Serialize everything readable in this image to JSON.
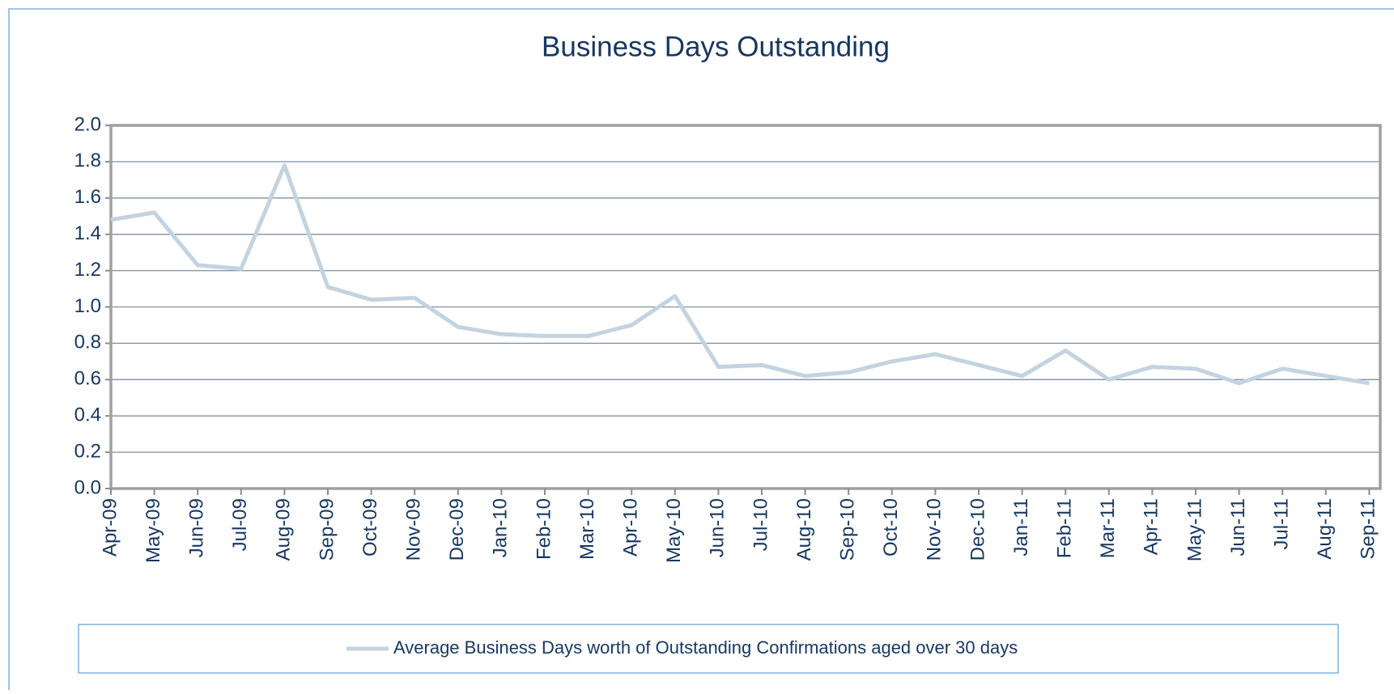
{
  "chart_data": {
    "type": "line",
    "title": "Business Days Outstanding",
    "categories": [
      "Apr-09",
      "May-09",
      "Jun-09",
      "Jul-09",
      "Aug-09",
      "Sep-09",
      "Oct-09",
      "Nov-09",
      "Dec-09",
      "Jan-10",
      "Feb-10",
      "Mar-10",
      "Apr-10",
      "May-10",
      "Jun-10",
      "Jul-10",
      "Aug-10",
      "Sep-10",
      "Oct-10",
      "Nov-10",
      "Dec-10",
      "Jan-11",
      "Feb-11",
      "Mar-11",
      "Apr-11",
      "May-11",
      "Jun-11",
      "Jul-11",
      "Aug-11",
      "Sep-11"
    ],
    "series": [
      {
        "name": "Average Business Days worth of Outstanding Confirmations aged over 30 days",
        "color": "#c3d3e0",
        "values": [
          1.48,
          1.52,
          1.23,
          1.21,
          1.78,
          1.11,
          1.04,
          1.05,
          0.89,
          0.85,
          0.84,
          0.84,
          0.9,
          1.06,
          0.67,
          0.68,
          0.62,
          0.64,
          0.7,
          0.74,
          0.68,
          0.62,
          0.76,
          0.6,
          0.67,
          0.66,
          0.58,
          0.66,
          0.62,
          0.58
        ]
      }
    ],
    "ylim": [
      0,
      2
    ],
    "yticks": [
      {
        "value": 0,
        "label": "0.0"
      },
      {
        "value": 0.2,
        "label": "0.2"
      },
      {
        "value": 0.4,
        "label": "0.4"
      },
      {
        "value": 0.6,
        "label": "0.6"
      },
      {
        "value": 0.8,
        "label": "0.8"
      },
      {
        "value": 1,
        "label": "1.0"
      },
      {
        "value": 1.2,
        "label": "1.2"
      },
      {
        "value": 1.4,
        "label": "1.4"
      },
      {
        "value": 1.6,
        "label": "1.6"
      },
      {
        "value": 1.8,
        "label": "1.8"
      },
      {
        "value": 2,
        "label": "2.0"
      }
    ],
    "grid": true,
    "legend": "bottom"
  }
}
